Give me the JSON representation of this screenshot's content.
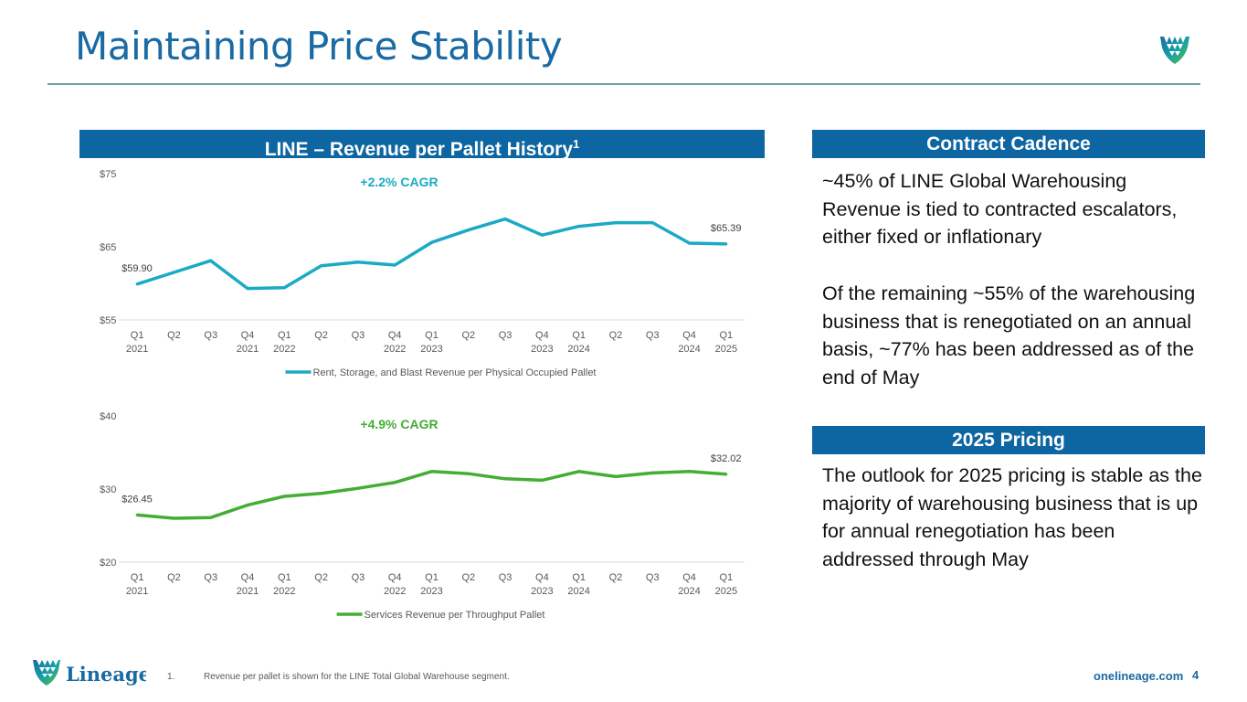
{
  "page": {
    "title": "Maintaining Price Stability",
    "page_number": "4",
    "website": "onelineage.com",
    "brand": "Lineage",
    "footnote_number": "1.",
    "footnote_text": "Revenue per pallet is shown for the LINE Total Global Warehouse segment."
  },
  "left_section": {
    "header": "LINE – Revenue per Pallet History",
    "header_superscript": "1"
  },
  "right_section": {
    "contract_header": "Contract Cadence",
    "contract_para1": "~45% of LINE Global Warehousing Revenue is tied to contracted escalators, either fixed or inflationary",
    "contract_para2": "Of the remaining ~55% of the warehousing business that is renegotiated on an annual basis, ~77% has been addressed as of the end of May",
    "pricing_header": "2025 Pricing",
    "pricing_para": "The outlook for 2025 pricing is stable as the majority of warehousing business that is up for annual renegotiation has been addressed through May"
  },
  "colors": {
    "brand_blue": "#0d66a1",
    "title_blue": "#1a6aa3",
    "series1": "#1aaac4",
    "series2": "#44ad34"
  },
  "chart_data": [
    {
      "type": "line",
      "title": "Rent, Storage, and Blast Revenue per Physical Occupied Pallet",
      "annotation": "+2.2% CAGR",
      "categories": [
        "Q1 2021",
        "Q2",
        "Q3",
        "Q4 2021",
        "Q1 2022",
        "Q2",
        "Q3",
        "Q4 2022",
        "Q1 2023",
        "Q2",
        "Q3",
        "Q4 2023",
        "Q1 2024",
        "Q2",
        "Q3",
        "Q4 2024",
        "Q1 2025"
      ],
      "tick_line1": [
        "Q1",
        "Q2",
        "Q3",
        "Q4",
        "Q1",
        "Q2",
        "Q3",
        "Q4",
        "Q1",
        "Q2",
        "Q3",
        "Q4",
        "Q1",
        "Q2",
        "Q3",
        "Q4",
        "Q1"
      ],
      "tick_line2": [
        "2021",
        "",
        "",
        "2021",
        "2022",
        "",
        "",
        "2022",
        "2023",
        "",
        "",
        "2023",
        "2024",
        "",
        "",
        "2024",
        "2025"
      ],
      "series": [
        {
          "name": "Rent, Storage, and Blast Revenue per Physical Occupied Pallet",
          "values": [
            59.9,
            61.5,
            63.1,
            59.3,
            59.4,
            62.4,
            62.9,
            62.5,
            65.6,
            67.3,
            68.8,
            66.6,
            67.8,
            68.3,
            68.3,
            65.5,
            65.39
          ]
        }
      ],
      "data_labels": {
        "first": "$59.90",
        "last": "$65.39"
      },
      "ylim": [
        55,
        75
      ],
      "yticks": [
        55,
        65,
        75
      ],
      "ytick_labels": [
        "$55",
        "$65",
        "$75"
      ],
      "xlabel": "",
      "ylabel": "",
      "legend_position": "bottom"
    },
    {
      "type": "line",
      "title": "Services Revenue per Throughput Pallet",
      "annotation": "+4.9% CAGR",
      "categories": [
        "Q1 2021",
        "Q2",
        "Q3",
        "Q4 2021",
        "Q1 2022",
        "Q2",
        "Q3",
        "Q4 2022",
        "Q1 2023",
        "Q2",
        "Q3",
        "Q4 2023",
        "Q1 2024",
        "Q2",
        "Q3",
        "Q4 2024",
        "Q1 2025"
      ],
      "tick_line1": [
        "Q1",
        "Q2",
        "Q3",
        "Q4",
        "Q1",
        "Q2",
        "Q3",
        "Q4",
        "Q1",
        "Q2",
        "Q3",
        "Q4",
        "Q1",
        "Q2",
        "Q3",
        "Q4",
        "Q1"
      ],
      "tick_line2": [
        "2021",
        "",
        "",
        "2021",
        "2022",
        "",
        "",
        "2022",
        "2023",
        "",
        "",
        "2023",
        "2024",
        "",
        "",
        "2024",
        "2025"
      ],
      "series": [
        {
          "name": "Services Revenue per Throughput Pallet",
          "values": [
            26.45,
            26.0,
            26.1,
            27.8,
            29.0,
            29.4,
            30.1,
            30.9,
            32.4,
            32.1,
            31.4,
            31.2,
            32.4,
            31.7,
            32.2,
            32.4,
            32.02
          ]
        }
      ],
      "data_labels": {
        "first": "$26.45",
        "last": "$32.02"
      },
      "ylim": [
        20,
        40
      ],
      "yticks": [
        20,
        30,
        40
      ],
      "ytick_labels": [
        "$20",
        "$30",
        "$40"
      ],
      "xlabel": "",
      "ylabel": "",
      "legend_position": "bottom"
    }
  ]
}
